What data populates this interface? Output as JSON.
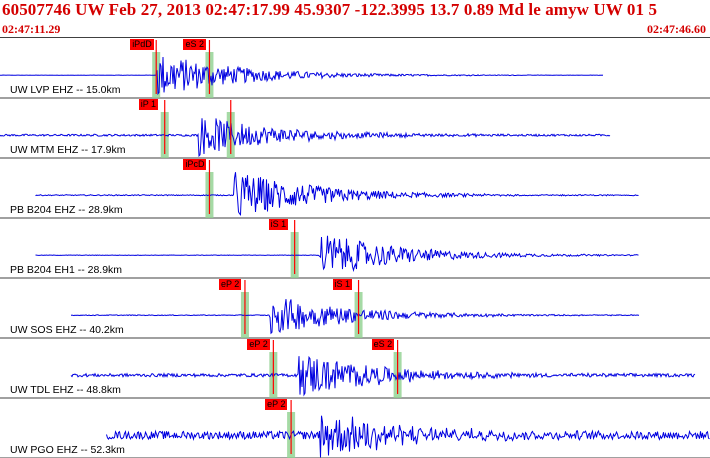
{
  "header": {
    "title": "60507746 UW Feb 27, 2013 02:47:17.99    45.9307 -122.3995 13.7 0.89 Md le amyw UW 01    5",
    "time_start": "02:47:11.29",
    "time_end": "02:47:46.60"
  },
  "colors": {
    "title": "#d40000",
    "trace": "#0000e0",
    "pick": "#ff0000",
    "window": "#8fd18f",
    "separator": "#404040"
  },
  "traces": [
    {
      "label": "UW LVP EHZ -- 15.0km",
      "picks": [
        {
          "label": "iPdD",
          "t": 0.22
        },
        {
          "label": "eS 2",
          "t": 0.295
        }
      ],
      "noise": 0.02,
      "start": 0.0,
      "end": 0.85,
      "amp": 0.9,
      "onset": 0.22
    },
    {
      "label": "UW MTM EHZ -- 17.9km",
      "picks": [
        {
          "label": "iP 1",
          "t": 0.232
        },
        {
          "label": "",
          "t": 0.325
        }
      ],
      "noise": 0.12,
      "start": 0.0,
      "end": 0.86,
      "amp": 0.8,
      "onset": 0.28
    },
    {
      "label": "PB B204 EHZ -- 28.9km",
      "picks": [
        {
          "label": "iPcD",
          "t": 0.295
        }
      ],
      "noise": 0.06,
      "start": 0.05,
      "end": 0.9,
      "amp": 1.0,
      "onset": 0.33
    },
    {
      "label": "PB B204 EH1 -- 28.9km",
      "picks": [
        {
          "label": "iS 1",
          "t": 0.415
        }
      ],
      "noise": 0.03,
      "start": 0.05,
      "end": 0.9,
      "amp": 0.9,
      "onset": 0.45
    },
    {
      "label": "UW SOS EHZ -- 40.2km",
      "picks": [
        {
          "label": "eP 2",
          "t": 0.345
        },
        {
          "label": "iS 1",
          "t": 0.505
        }
      ],
      "noise": 0.05,
      "start": 0.1,
      "end": 0.9,
      "amp": 0.8,
      "onset": 0.38
    },
    {
      "label": "UW TDL EHZ -- 48.8km",
      "picks": [
        {
          "label": "eP 2",
          "t": 0.385
        },
        {
          "label": "eS 2",
          "t": 0.56
        }
      ],
      "noise": 0.2,
      "start": 0.1,
      "end": 0.98,
      "amp": 0.9,
      "onset": 0.42
    },
    {
      "label": "UW PGO EHZ -- 52.3km",
      "picks": [
        {
          "label": "eP 2",
          "t": 0.41
        }
      ],
      "noise": 0.5,
      "start": 0.15,
      "end": 1.0,
      "amp": 0.9,
      "onset": 0.45
    }
  ]
}
